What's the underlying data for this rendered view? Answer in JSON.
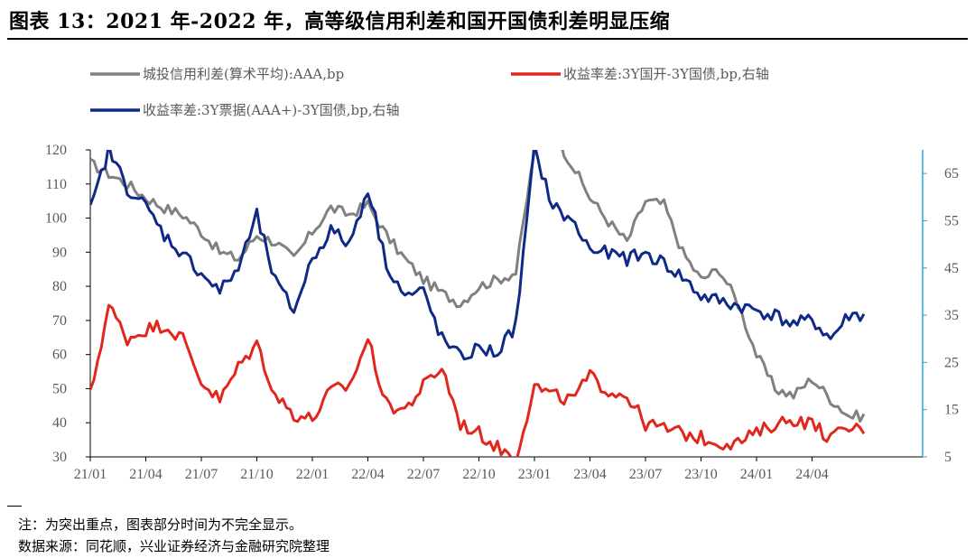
{
  "figure": {
    "title": "图表 13：2021 年-2022 年，高等级信用利差和国开国债利差明显压缩",
    "note": "注：为突出重点，图表部分时间为不完全显示。",
    "source": "数据来源：同花顺，兴业证券经济与金融研究院整理"
  },
  "chart_data": {
    "type": "line",
    "x_ticks": [
      "21/01",
      "21/04",
      "21/07",
      "21/10",
      "22/01",
      "22/04",
      "22/07",
      "22/10",
      "23/01",
      "23/04",
      "23/07",
      "23/10",
      "24/01",
      "24/04"
    ],
    "x_range": [
      "2021-01",
      "2024-06"
    ],
    "y_left": {
      "min": 30,
      "max": 120,
      "ticks": [
        30,
        40,
        50,
        60,
        70,
        80,
        90,
        100,
        110,
        120
      ]
    },
    "y_right": {
      "min": 5,
      "max": 70,
      "ticks": [
        5,
        15,
        25,
        35,
        45,
        55,
        65
      ]
    },
    "grid": false,
    "legend_position": "top",
    "series": [
      {
        "name": "城投信用利差(算术平均):AAA,bp",
        "axis": "left",
        "color": "#808080",
        "x": [
          "21/01",
          "21/02",
          "21/03",
          "21/04",
          "21/05",
          "21/06",
          "21/07",
          "21/08",
          "21/09",
          "21/10",
          "21/11",
          "21/12",
          "22/01",
          "22/02",
          "22/03",
          "22/04",
          "22/05",
          "22/06",
          "22/07",
          "22/08",
          "22/09",
          "22/10",
          "22/11",
          "22/12",
          "23/01",
          "23/02",
          "23/03",
          "23/04",
          "23/05",
          "23/06",
          "23/07",
          "23/08",
          "23/09",
          "23/10",
          "23/11",
          "23/12",
          "24/01",
          "24/02",
          "24/03",
          "24/04",
          "24/05",
          "24/06"
        ],
        "values": [
          116,
          113,
          110,
          106,
          103,
          101,
          96,
          90,
          88,
          95,
          93,
          88,
          96,
          103,
          101,
          104,
          95,
          88,
          82,
          78,
          75,
          80,
          82,
          84,
          120,
          125,
          116,
          106,
          99,
          93,
          105,
          104,
          90,
          82,
          85,
          75,
          60,
          50,
          48,
          53,
          47,
          42
        ]
      },
      {
        "name": "收益率差:3Y国开-3Y国债,bp,右轴",
        "axis": "right",
        "color": "#e1261c",
        "x": [
          "21/01",
          "21/02",
          "21/03",
          "21/04",
          "21/05",
          "21/06",
          "21/07",
          "21/08",
          "21/09",
          "21/10",
          "21/11",
          "21/12",
          "22/01",
          "22/02",
          "22/03",
          "22/04",
          "22/05",
          "22/06",
          "22/07",
          "22/08",
          "22/09",
          "22/10",
          "22/11",
          "22/12",
          "23/01",
          "23/02",
          "23/03",
          "23/04",
          "23/05",
          "23/06",
          "23/07",
          "23/08",
          "23/09",
          "23/10",
          "23/11",
          "23/12",
          "24/01",
          "24/02",
          "24/03",
          "24/04",
          "24/05",
          "24/06"
        ],
        "values": [
          18,
          37,
          30,
          32,
          33,
          30,
          21,
          17,
          24,
          29,
          18,
          14,
          13,
          19,
          20,
          30,
          16,
          15,
          20,
          24,
          12,
          10,
          7,
          5,
          20,
          18,
          17,
          22,
          19,
          18,
          12,
          11,
          10,
          9,
          8,
          8,
          10,
          12,
          13,
          12,
          9,
          11
        ]
      },
      {
        "name": "收益率差:3Y票据(AAA+)-3Y国债,bp,右轴",
        "axis": "right",
        "color": "#0e2a86",
        "x": [
          "21/01",
          "21/02",
          "21/03",
          "21/04",
          "21/05",
          "21/06",
          "21/07",
          "21/08",
          "21/09",
          "21/10",
          "21/11",
          "21/12",
          "22/01",
          "22/02",
          "22/03",
          "22/04",
          "22/05",
          "22/06",
          "22/07",
          "22/08",
          "22/09",
          "22/10",
          "22/11",
          "22/12",
          "23/01",
          "23/02",
          "23/03",
          "23/04",
          "23/05",
          "23/06",
          "23/07",
          "23/08",
          "23/09",
          "23/10",
          "23/11",
          "23/12",
          "24/01",
          "24/02",
          "24/03",
          "24/04",
          "24/05",
          "24/06"
        ],
        "values": [
          57,
          70,
          62,
          58,
          52,
          48,
          44,
          40,
          45,
          56,
          42,
          36,
          47,
          53,
          50,
          62,
          46,
          39,
          40,
          30,
          26,
          28,
          27,
          33,
          70,
          58,
          55,
          49,
          48,
          47,
          48,
          46,
          43,
          39,
          38,
          37,
          36,
          35,
          33,
          34,
          30,
          35
        ]
      }
    ]
  }
}
